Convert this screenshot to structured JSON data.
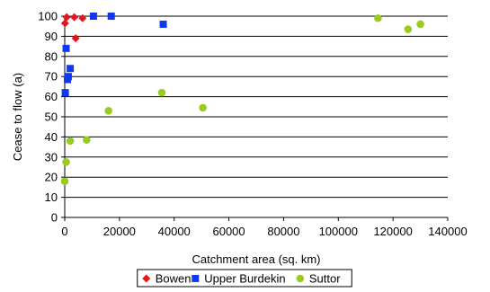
{
  "chart_data": {
    "type": "scatter",
    "title": "",
    "xlabel": "Catchment area (sq. km)",
    "ylabel": "Cease to flow (a)",
    "xlim": [
      0,
      140000
    ],
    "ylim": [
      0,
      100
    ],
    "x_ticks": [
      0,
      20000,
      40000,
      60000,
      80000,
      100000,
      120000,
      140000
    ],
    "y_ticks": [
      0,
      10,
      20,
      30,
      40,
      50,
      60,
      70,
      80,
      90,
      100
    ],
    "grid": "horizontal",
    "legend_position": "bottom",
    "series": [
      {
        "name": "Bowen",
        "marker": "diamond",
        "color": "#e8141b",
        "points": [
          {
            "x": 100,
            "y": 96.5
          },
          {
            "x": 700,
            "y": 99.5
          },
          {
            "x": 3500,
            "y": 99.5
          },
          {
            "x": 4000,
            "y": 89
          },
          {
            "x": 6500,
            "y": 99
          }
        ]
      },
      {
        "name": "Upper Burdekin",
        "marker": "square",
        "color": "#1238ee",
        "points": [
          {
            "x": 200,
            "y": 62
          },
          {
            "x": 500,
            "y": 84
          },
          {
            "x": 1000,
            "y": 68.5
          },
          {
            "x": 1300,
            "y": 70
          },
          {
            "x": 2000,
            "y": 74
          },
          {
            "x": 10500,
            "y": 100
          },
          {
            "x": 17000,
            "y": 100
          },
          {
            "x": 36000,
            "y": 96
          }
        ]
      },
      {
        "name": "Suttor",
        "marker": "circle",
        "color": "#99cc22",
        "points": [
          {
            "x": 0,
            "y": 18
          },
          {
            "x": 500,
            "y": 27.5
          },
          {
            "x": 2000,
            "y": 38
          },
          {
            "x": 8000,
            "y": 38.5
          },
          {
            "x": 16000,
            "y": 53
          },
          {
            "x": 35500,
            "y": 62
          },
          {
            "x": 50500,
            "y": 54.5
          },
          {
            "x": 114500,
            "y": 99
          },
          {
            "x": 125500,
            "y": 93.5
          },
          {
            "x": 130000,
            "y": 96
          }
        ]
      }
    ]
  }
}
